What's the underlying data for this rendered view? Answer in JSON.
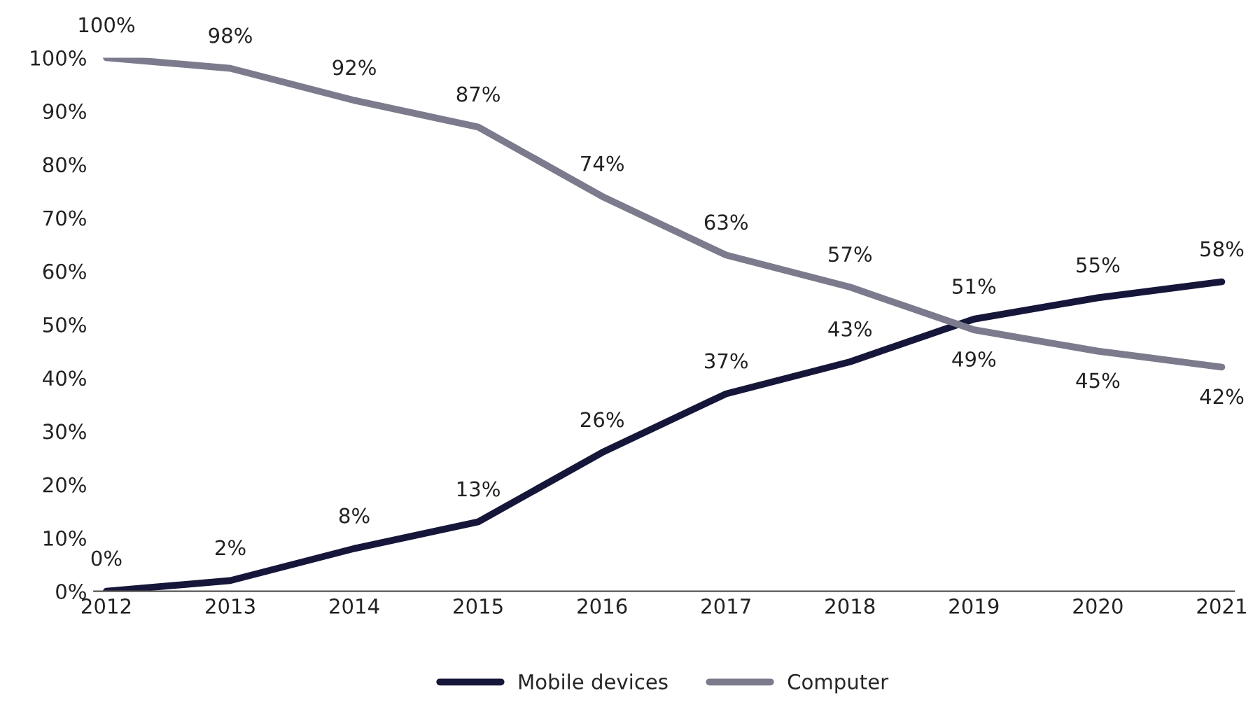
{
  "chart_data": {
    "type": "line",
    "categories": [
      "2012",
      "2013",
      "2014",
      "2015",
      "2016",
      "2017",
      "2018",
      "2019",
      "2020",
      "2021"
    ],
    "series": [
      {
        "name": "Mobile devices",
        "color": "#16163a",
        "values": [
          0,
          2,
          8,
          13,
          26,
          37,
          43,
          51,
          55,
          58
        ],
        "value_labels": [
          "0%",
          "2%",
          "8%",
          "13%",
          "26%",
          "37%",
          "43%",
          "51%",
          "55%",
          "58%"
        ]
      },
      {
        "name": "Computer",
        "color": "#7b7b8d",
        "values": [
          100,
          98,
          92,
          87,
          74,
          63,
          57,
          49,
          45,
          42
        ],
        "value_labels": [
          "100%",
          "98%",
          "92%",
          "87%",
          "74%",
          "63%",
          "57%",
          "49%",
          "45%",
          "42%"
        ]
      }
    ],
    "ylim": [
      0,
      100
    ],
    "yticks": [
      {
        "value": 0,
        "label": "0%"
      },
      {
        "value": 10,
        "label": "10%"
      },
      {
        "value": 20,
        "label": "20%"
      },
      {
        "value": 30,
        "label": "30%"
      },
      {
        "value": 40,
        "label": "40%"
      },
      {
        "value": 50,
        "label": "50%"
      },
      {
        "value": 60,
        "label": "60%"
      },
      {
        "value": 70,
        "label": "70%"
      },
      {
        "value": 80,
        "label": "80%"
      },
      {
        "value": 90,
        "label": "90%"
      },
      {
        "value": 100,
        "label": "100%"
      }
    ],
    "legend": "bottom",
    "grid": false,
    "marker": "none",
    "line_style": "solid"
  }
}
